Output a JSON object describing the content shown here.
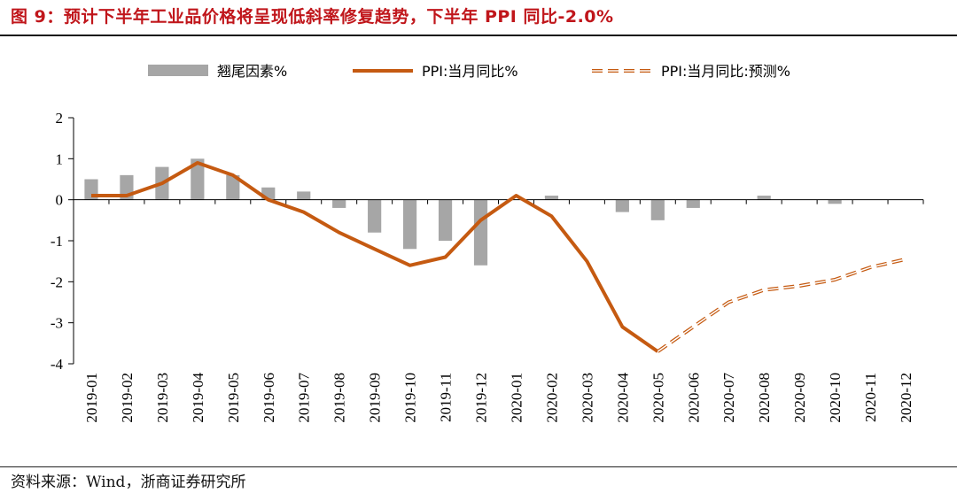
{
  "title": "图 9：预计下半年工业品价格将呈现低斜率修复趋势，下半年 PPI 同比-2.0%",
  "source": "资料来源：Wind，浙商证券研究所",
  "colors": {
    "title": "#c0161b",
    "bar": "#a6a6a6",
    "line": "#c55a11"
  },
  "chart_data": {
    "type": "bar+line",
    "ylim": [
      -4,
      2
    ],
    "yticks": [
      "2",
      "1",
      "0",
      "-1",
      "-2",
      "-3",
      "-4"
    ],
    "categories": [
      "2019-01",
      "2019-02",
      "2019-03",
      "2019-04",
      "2019-05",
      "2019-06",
      "2019-07",
      "2019-08",
      "2019-09",
      "2019-10",
      "2019-11",
      "2019-12",
      "2020-01",
      "2020-02",
      "2020-03",
      "2020-04",
      "2020-05",
      "2020-06",
      "2020-07",
      "2020-08",
      "2020-09",
      "2020-10",
      "2020-11",
      "2020-12"
    ],
    "legend": [
      "翘尾因素%",
      "PPI:当月同比%",
      "PPI:当月同比:预测%"
    ],
    "series": [
      {
        "name": "翘尾因素%",
        "type": "bar",
        "values": [
          0.5,
          0.6,
          0.8,
          1.0,
          0.6,
          0.3,
          0.2,
          -0.2,
          -0.8,
          -1.2,
          -1.0,
          -1.6,
          0.0,
          0.1,
          0.0,
          -0.3,
          -0.5,
          -0.2,
          0.0,
          0.1,
          0.0,
          -0.1,
          0.0,
          0.0
        ]
      },
      {
        "name": "PPI:当月同比%",
        "type": "line",
        "values": [
          0.1,
          0.1,
          0.4,
          0.9,
          0.6,
          0.0,
          -0.3,
          -0.8,
          -1.2,
          -1.6,
          -1.4,
          -0.5,
          0.1,
          -0.4,
          -1.5,
          -3.1,
          -3.7,
          null,
          null,
          null,
          null,
          null,
          null,
          null
        ]
      },
      {
        "name": "PPI:当月同比:预测%",
        "type": "line-dashed",
        "values": [
          null,
          null,
          null,
          null,
          null,
          null,
          null,
          null,
          null,
          null,
          null,
          null,
          null,
          null,
          null,
          null,
          -3.7,
          -3.1,
          -2.5,
          -2.2,
          -2.1,
          -1.95,
          -1.65,
          -1.45
        ]
      }
    ]
  }
}
